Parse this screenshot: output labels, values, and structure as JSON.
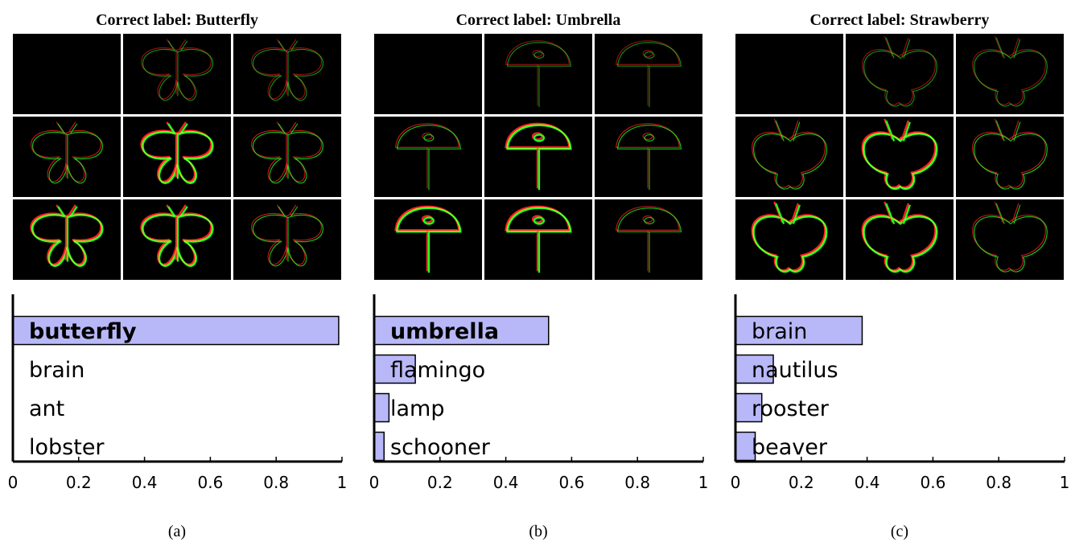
{
  "panels": [
    {
      "title": "Correct label: Butterfly",
      "caption": "(a)",
      "subject": "butterfly",
      "chart_data": {
        "type": "bar",
        "orientation": "horizontal",
        "categories": [
          "butterfly",
          "brain",
          "ant",
          "lobster"
        ],
        "values": [
          0.99,
          0.0,
          0.0,
          0.0
        ],
        "highlight": "butterfly",
        "xlim": [
          0,
          1
        ],
        "xticks": [
          "0",
          "0.2",
          "0.4",
          "0.6",
          "0.8",
          "1"
        ],
        "bar_color": "#b8b8f8"
      }
    },
    {
      "title": "Correct label: Umbrella",
      "caption": "(b)",
      "subject": "umbrella",
      "chart_data": {
        "type": "bar",
        "orientation": "horizontal",
        "categories": [
          "umbrella",
          "flamingo",
          "lamp",
          "schooner"
        ],
        "values": [
          0.53,
          0.125,
          0.045,
          0.03
        ],
        "highlight": "umbrella",
        "xlim": [
          0,
          1
        ],
        "xticks": [
          "0",
          "0.2",
          "0.4",
          "0.6",
          "0.8",
          "1"
        ],
        "bar_color": "#b8b8f8"
      }
    },
    {
      "title": "Correct label: Strawberry",
      "caption": "(c)",
      "subject": "strawberry",
      "chart_data": {
        "type": "bar",
        "orientation": "horizontal",
        "categories": [
          "brain",
          "nautilus",
          "rooster",
          "beaver"
        ],
        "values": [
          0.385,
          0.115,
          0.08,
          0.06
        ],
        "highlight": "",
        "xlim": [
          0,
          1
        ],
        "xticks": [
          "0",
          "0.2",
          "0.4",
          "0.6",
          "0.8",
          "1"
        ],
        "bar_color": "#b8b8f8"
      }
    }
  ],
  "colors": {
    "red": "#ff2020",
    "green": "#20ff20",
    "bar_fill": "#b8b8f8"
  }
}
